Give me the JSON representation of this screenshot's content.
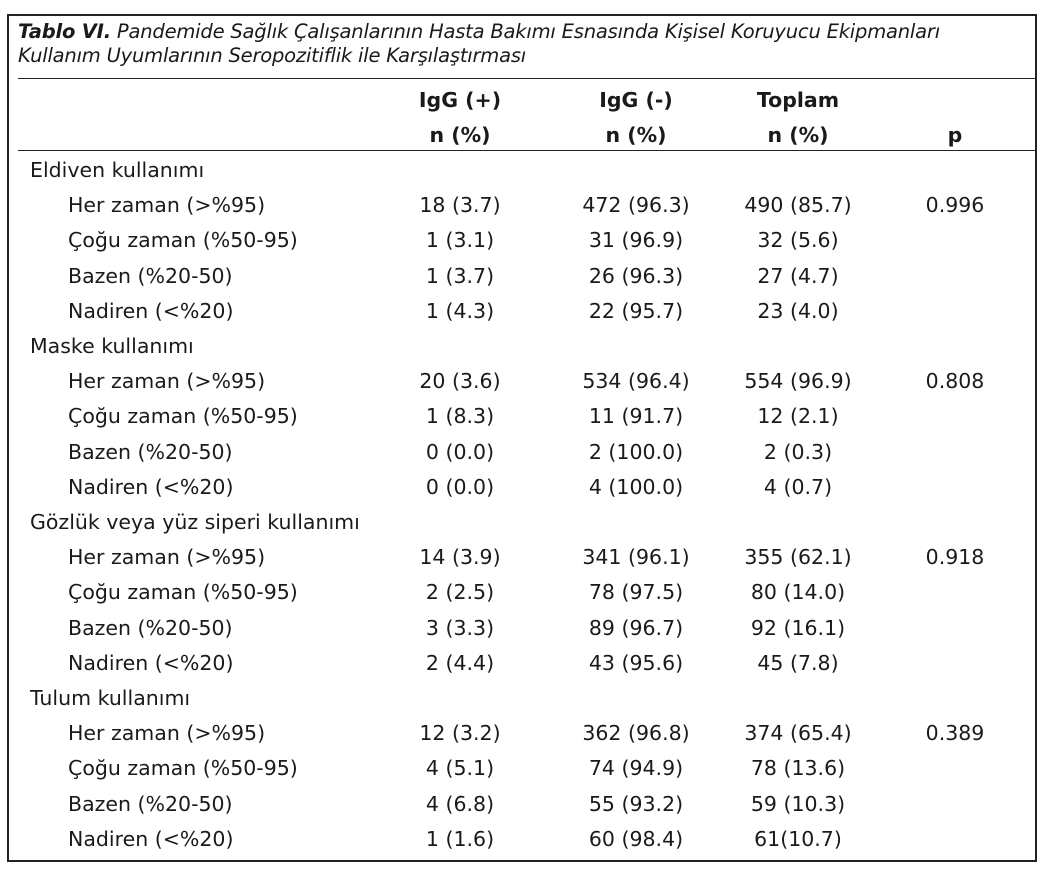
{
  "caption": {
    "label": "Tablo VI.",
    "text": " Pandemide Sağlık Çalışanlarının Hasta Bakımı Esnasında Kişisel Koruyucu Ekipmanları Kullanım Uyumlarının Seropozitiflik ile Karşılaştırması"
  },
  "header": {
    "igg_pos": "IgG (+)",
    "igg_neg": "IgG (-)",
    "total": "Toplam",
    "n_pct_1": "n (%)",
    "n_pct_2": "n (%)",
    "n_pct_3": "n (%)",
    "p": "p"
  },
  "sections": [
    {
      "title": "Eldiven kullanımı",
      "rows": [
        {
          "label": "Her zaman (>%95)",
          "pos": "18 (3.7)",
          "neg": "472 (96.3)",
          "total": "490 (85.7)",
          "p": "0.996"
        },
        {
          "label": "Çoğu zaman (%50-95)",
          "pos": "1 (3.1)",
          "neg": "31 (96.9)",
          "total": "32 (5.6)",
          "p": ""
        },
        {
          "label": "Bazen (%20-50)",
          "pos": "1 (3.7)",
          "neg": "26 (96.3)",
          "total": "27 (4.7)",
          "p": ""
        },
        {
          "label": "Nadiren (<%20)",
          "pos": "1 (4.3)",
          "neg": "22 (95.7)",
          "total": "23 (4.0)",
          "p": ""
        }
      ]
    },
    {
      "title": "Maske kullanımı",
      "rows": [
        {
          "label": "Her zaman (>%95)",
          "pos": "20 (3.6)",
          "neg": "534 (96.4)",
          "total": "554 (96.9)",
          "p": "0.808"
        },
        {
          "label": "Çoğu zaman (%50-95)",
          "pos": "1 (8.3)",
          "neg": "11 (91.7)",
          "total": "12 (2.1)",
          "p": ""
        },
        {
          "label": "Bazen (%20-50)",
          "pos": "0 (0.0)",
          "neg": "2 (100.0)",
          "total": "2 (0.3)",
          "p": ""
        },
        {
          "label": "Nadiren (<%20)",
          "pos": "0 (0.0)",
          "neg": "4 (100.0)",
          "total": "4 (0.7)",
          "p": ""
        }
      ]
    },
    {
      "title": "Gözlük veya yüz siperi kullanımı",
      "rows": [
        {
          "label": "Her zaman (>%95)",
          "pos": "14 (3.9)",
          "neg": "341 (96.1)",
          "total": "355 (62.1)",
          "p": "0.918"
        },
        {
          "label": "Çoğu zaman (%50-95)",
          "pos": "2 (2.5)",
          "neg": "78 (97.5)",
          "total": "80 (14.0)",
          "p": ""
        },
        {
          "label": "Bazen (%20-50)",
          "pos": "3 (3.3)",
          "neg": "89 (96.7)",
          "total": "92 (16.1)",
          "p": ""
        },
        {
          "label": "Nadiren (<%20)",
          "pos": "2 (4.4)",
          "neg": "43 (95.6)",
          "total": "45 (7.8)",
          "p": ""
        }
      ]
    },
    {
      "title": "Tulum kullanımı",
      "rows": [
        {
          "label": "Her zaman (>%95)",
          "pos": "12 (3.2)",
          "neg": "362 (96.8)",
          "total": "374 (65.4)",
          "p": "0.389"
        },
        {
          "label": "Çoğu zaman (%50-95)",
          "pos": "4 (5.1)",
          "neg": "74 (94.9)",
          "total": "78 (13.6)",
          "p": ""
        },
        {
          "label": "Bazen (%20-50)",
          "pos": "4 (6.8)",
          "neg": "55 (93.2)",
          "total": "59 (10.3)",
          "p": ""
        },
        {
          "label": "Nadiren (<%20)",
          "pos": "1 (1.6)",
          "neg": "60 (98.4)",
          "total": "61(10.7)",
          "p": ""
        }
      ]
    }
  ]
}
